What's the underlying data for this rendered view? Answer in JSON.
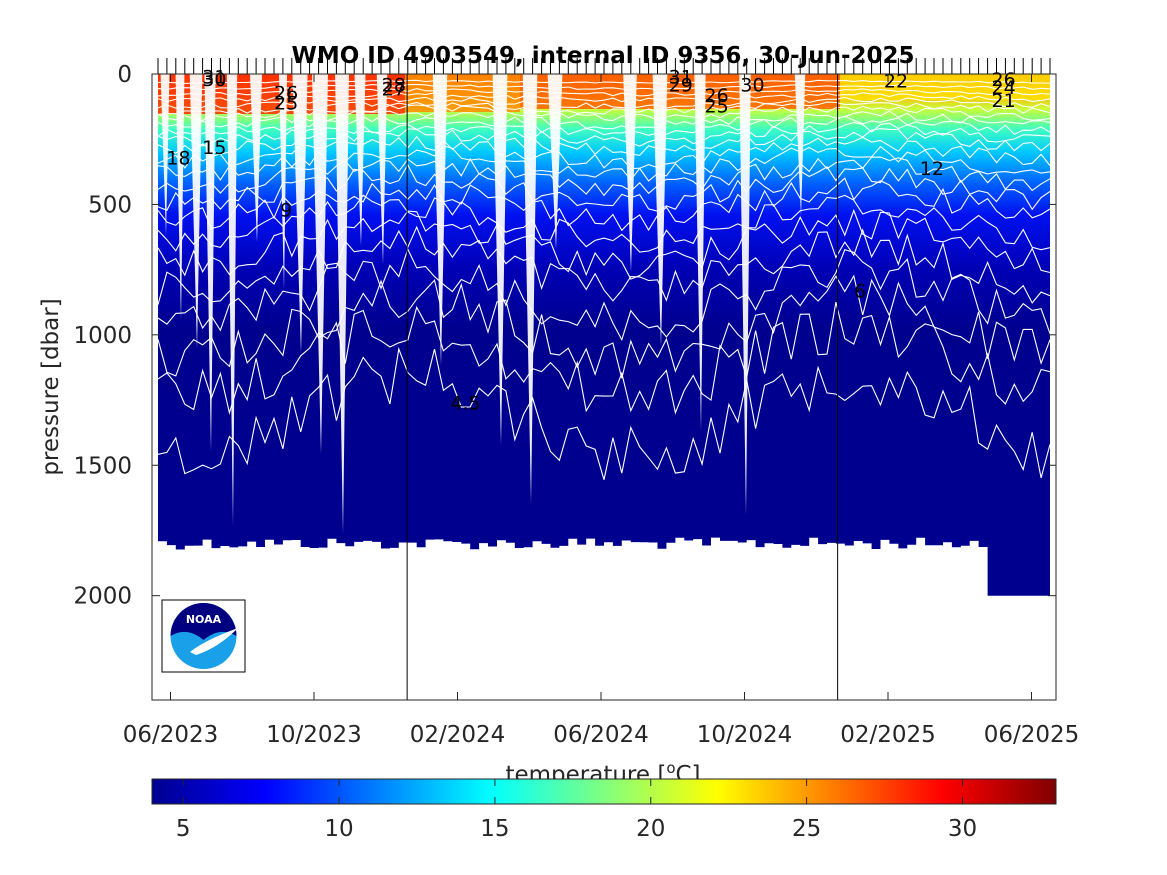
{
  "chart_data": {
    "type": "heatmap",
    "title": "WMO ID 4903549, internal ID 9356, 30-Jun-2025",
    "xlabel": "",
    "ylabel": "pressure [dbar]",
    "x_ticks": [
      "06/2023",
      "10/2023",
      "02/2024",
      "06/2024",
      "10/2024",
      "02/2025",
      "06/2025"
    ],
    "y_ticks": [
      "0",
      "500",
      "1000",
      "1500",
      "2000"
    ],
    "ylim": [
      2400,
      0
    ],
    "y_reversed": true,
    "colorbar": {
      "label": "temperature [",
      "label_superscript": "o",
      "label_suffix": "C]",
      "range": [
        4,
        33
      ],
      "ticks": [
        "5",
        "10",
        "15",
        "20",
        "25",
        "30"
      ],
      "colormap": "jet"
    },
    "year_boundaries": [
      "01/2024",
      "01/2025"
    ],
    "max_profile_depth": [
      1800,
      2000
    ],
    "contour_labels": [
      {
        "text": "31",
        "date": "2023-07",
        "p": 10
      },
      {
        "text": "30",
        "date": "2023-07",
        "p": 20
      },
      {
        "text": "18",
        "date": "2023-06",
        "p": 320
      },
      {
        "text": "15",
        "date": "2023-07",
        "p": 280
      },
      {
        "text": "26",
        "date": "2023-09",
        "p": 70
      },
      {
        "text": "25",
        "date": "2023-09",
        "p": 110
      },
      {
        "text": "9",
        "date": "2023-09",
        "p": 520
      },
      {
        "text": "28",
        "date": "2023-12",
        "p": 40
      },
      {
        "text": "27",
        "date": "2023-12",
        "p": 55
      },
      {
        "text": "4.5",
        "date": "2024-02",
        "p": 1260
      },
      {
        "text": "31",
        "date": "2024-08",
        "p": 10
      },
      {
        "text": "29",
        "date": "2024-08",
        "p": 40
      },
      {
        "text": "26",
        "date": "2024-09",
        "p": 80
      },
      {
        "text": "25",
        "date": "2024-09",
        "p": 120
      },
      {
        "text": "30",
        "date": "2024-10",
        "p": 40
      },
      {
        "text": "6",
        "date": "2025-01",
        "p": 830
      },
      {
        "text": "22",
        "date": "2025-02",
        "p": 25
      },
      {
        "text": "12",
        "date": "2025-03",
        "p": 360
      },
      {
        "text": "24",
        "date": "2025-05",
        "p": 50
      },
      {
        "text": "26",
        "date": "2025-05",
        "p": 20
      },
      {
        "text": "21",
        "date": "2025-05",
        "p": 100
      }
    ]
  },
  "logo": {
    "text": "NOAA"
  }
}
